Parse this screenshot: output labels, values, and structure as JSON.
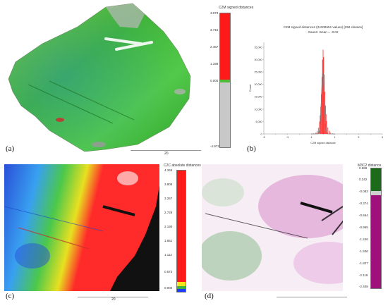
{
  "panels": {
    "a": {
      "label": "(a)",
      "scalebar_title": "C2M signed distances",
      "ticks": [
        "4.973",
        "3.715",
        "2.467",
        "1.198",
        "0.000",
        "-4.973"
      ],
      "scale_text": "20",
      "colors": {
        "red": "#ff1a1a",
        "gray": "#c8c8c8",
        "green": "#4dbb3a",
        "yellow": "#f2e21b"
      }
    },
    "b": {
      "label": "(b)",
      "title": "C2M signed distances (24306551 values) [256 classes]",
      "subtitle": "Gauss: mean = -0.02",
      "ylabel": "Count",
      "xlabel": "C2M signed distance"
    },
    "c": {
      "label": "(c)",
      "scalebar_title": "C2C absolute distances",
      "ticks": [
        "4.345",
        "3.806",
        "3.267",
        "2.728",
        "2.190",
        "1.651",
        "1.112",
        "0.573",
        "0.000"
      ],
      "scale_text": "20",
      "colors": {
        "red": "#ff1a1a",
        "yellow": "#f5e51a",
        "green": "#3cb43c",
        "blue": "#1a3cff"
      }
    },
    "d": {
      "label": "(d)",
      "scalebar_title": "M3C2 distance",
      "ticks": [
        "0.568",
        "0.242",
        "-0.083",
        "-0.374",
        "-0.664",
        "-0.955",
        "-1.246",
        "-1.536",
        "-1.827",
        "-2.118",
        "-2.408"
      ],
      "colors": {
        "green": "#1b6b1b",
        "magenta": "#a0107a",
        "gray": "#cfcfcf"
      }
    }
  },
  "chart_data": {
    "type": "bar",
    "title": "C2M signed distances (24306551 values) [256 classes]",
    "subtitle": "Gauss: mean = -0.02",
    "xlabel": "C2M signed distance",
    "ylabel": "Count",
    "x_ticks": [
      "-5",
      "-4",
      "-3",
      "-2",
      "-1",
      "0",
      "1",
      "2",
      "3",
      "4",
      "5"
    ],
    "y_ticks": [
      "0",
      "5,000",
      "10,000",
      "15,000",
      "20,000",
      "25,000",
      "30,000",
      "35,000"
    ],
    "xlim": [
      -5,
      5
    ],
    "ylim": [
      0,
      37000
    ],
    "x": [
      -0.8,
      -0.6,
      -0.5,
      -0.4,
      -0.3,
      -0.25,
      -0.2,
      -0.15,
      -0.1,
      -0.05,
      0,
      0.05,
      0.1,
      0.15,
      0.2,
      0.25,
      0.3,
      0.4,
      0.5,
      0.6,
      0.8
    ],
    "values": [
      200,
      600,
      1200,
      2500,
      5000,
      7500,
      11000,
      16000,
      23000,
      30000,
      34000,
      31000,
      24000,
      17000,
      11500,
      8000,
      5200,
      2600,
      1300,
      600,
      200
    ],
    "gauss_peak": 25000,
    "bar_color": "#ff2a2a",
    "curve_color": "#7a7a7a"
  }
}
